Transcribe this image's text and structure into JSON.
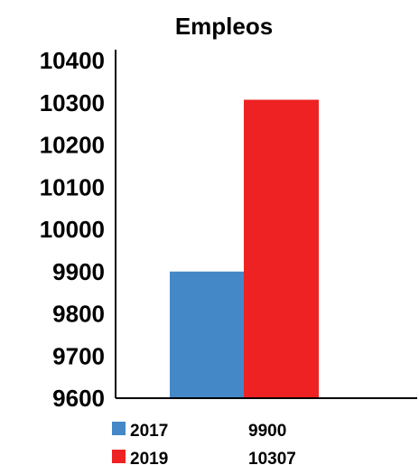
{
  "chart_data": {
    "type": "bar",
    "title": "Empleos",
    "xlabel": "",
    "ylabel": "",
    "ylim": [
      9600,
      10400
    ],
    "yticks": [
      "9600",
      "9700",
      "9800",
      "9900",
      "10000",
      "10100",
      "10200",
      "10300",
      "10400"
    ],
    "grid": false,
    "categories": [
      "2017",
      "2019"
    ],
    "series": [
      {
        "name": "2017",
        "value": 9900,
        "value_label": "9900",
        "color": "#4488c8"
      },
      {
        "name": "2019",
        "value": 10307,
        "value_label": "10307",
        "color": "#ee2222"
      }
    ],
    "data_table": "below chart, with legend keys"
  }
}
